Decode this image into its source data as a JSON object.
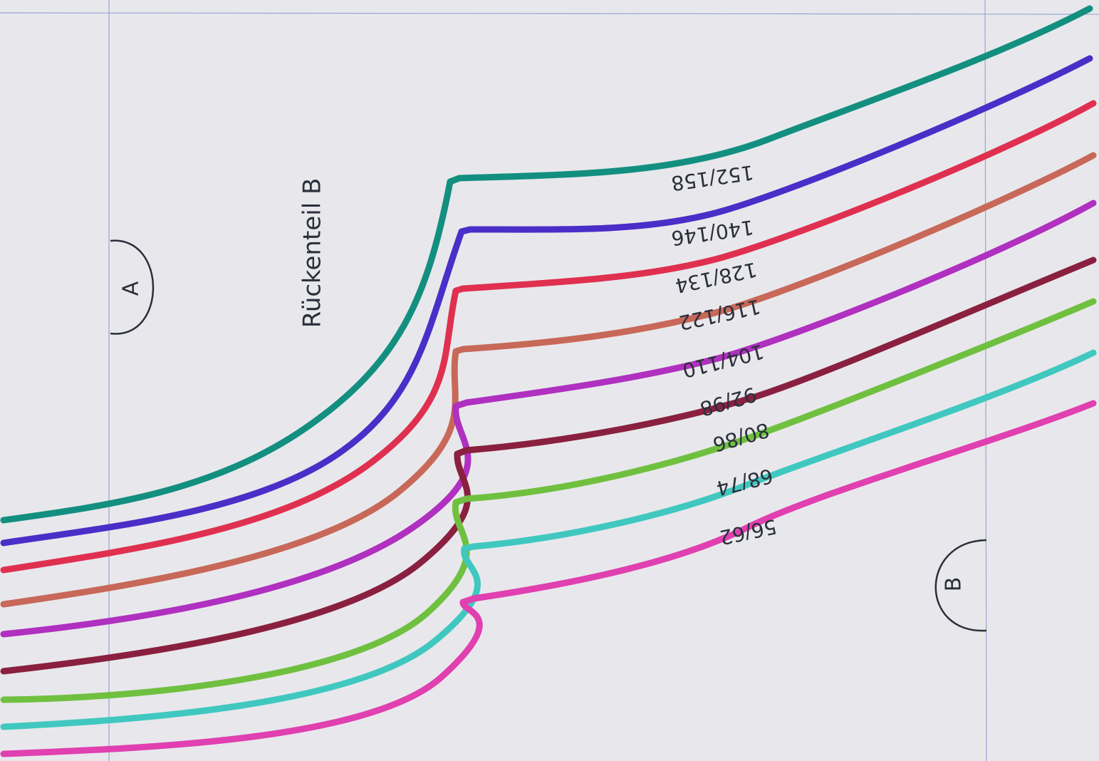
{
  "piece_label": "Rückenteil B",
  "markers": [
    "A",
    "B"
  ],
  "size_labels": [
    "152/158",
    "140/146",
    "128/134",
    "116/122",
    "104/110",
    "92/98",
    "80/86",
    "68/74",
    "56/62"
  ]
}
